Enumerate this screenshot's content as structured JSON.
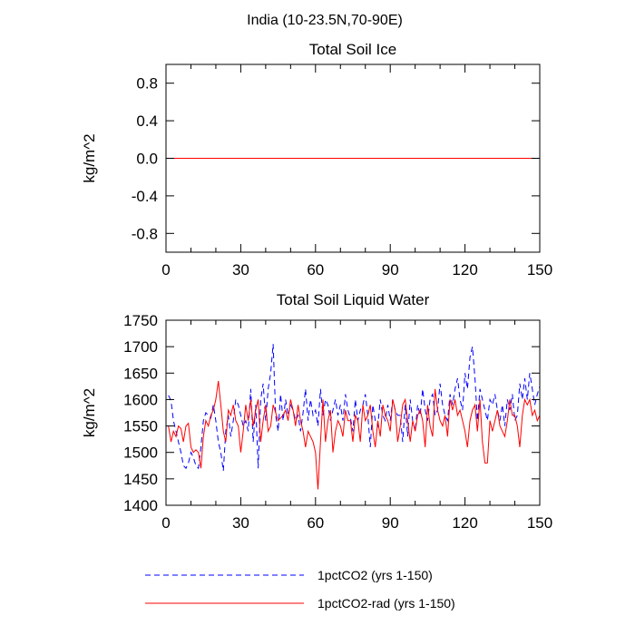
{
  "figure_title": "India (10-23.5N,70-90E)",
  "colors": {
    "series_1": "#0000ff",
    "series_2": "#ff0000",
    "axes": "#000000"
  },
  "chart_data": [
    {
      "type": "line",
      "title": "Total Soil Ice",
      "xlabel": "",
      "ylabel": "kg/m^2",
      "xlim": [
        0,
        150
      ],
      "ylim": [
        -1,
        1
      ],
      "xticks": [
        0,
        30,
        60,
        90,
        120,
        150
      ],
      "yticks": [
        -0.8,
        -0.4,
        0.0,
        0.4,
        0.8
      ],
      "ytick_labels": [
        "-0.8",
        "-0.4",
        "0.0",
        "0.4",
        "0.8"
      ],
      "grid": false,
      "series": [
        {
          "name": "1pctCO2 (yrs 1-150)",
          "style": "dashed",
          "color": "#0000ff",
          "x": [
            0,
            150
          ],
          "values": [
            0,
            0
          ]
        },
        {
          "name": "1pctCO2-rad (yrs 1-150)",
          "style": "solid",
          "color": "#ff0000",
          "x": [
            0,
            150
          ],
          "values": [
            0,
            0
          ]
        }
      ]
    },
    {
      "type": "line",
      "title": "Total Soil Liquid Water",
      "xlabel": "",
      "ylabel": "kg/m^2",
      "xlim": [
        0,
        150
      ],
      "ylim": [
        1400,
        1750
      ],
      "xticks": [
        0,
        30,
        60,
        90,
        120,
        150
      ],
      "yticks": [
        1400,
        1450,
        1500,
        1550,
        1600,
        1650,
        1700,
        1750
      ],
      "ytick_labels": [
        "1400",
        "1450",
        "1500",
        "1550",
        "1600",
        "1650",
        "1700",
        "1750"
      ],
      "grid": false,
      "series": [
        {
          "name": "1pctCO2 (yrs 1-150)",
          "style": "dashed",
          "color": "#0000ff",
          "x_start": 1,
          "values": [
            1608,
            1598,
            1560,
            1540,
            1520,
            1500,
            1475,
            1470,
            1480,
            1500,
            1490,
            1475,
            1470,
            1510,
            1560,
            1575,
            1570,
            1565,
            1590,
            1560,
            1520,
            1500,
            1465,
            1540,
            1570,
            1530,
            1560,
            1600,
            1590,
            1570,
            1550,
            1560,
            1540,
            1620,
            1520,
            1590,
            1470,
            1600,
            1630,
            1560,
            1620,
            1650,
            1705,
            1570,
            1540,
            1610,
            1560,
            1600,
            1570,
            1590,
            1580,
            1560,
            1570,
            1540,
            1575,
            1620,
            1560,
            1600,
            1570,
            1580,
            1550,
            1620,
            1570,
            1600,
            1590,
            1560,
            1580,
            1600,
            1570,
            1590,
            1560,
            1610,
            1580,
            1565,
            1540,
            1600,
            1560,
            1580,
            1590,
            1610,
            1570,
            1510,
            1590,
            1560,
            1550,
            1600,
            1570,
            1560,
            1590,
            1560,
            1600,
            1580,
            1570,
            1570,
            1520,
            1590,
            1530,
            1600,
            1560,
            1540,
            1590,
            1570,
            1620,
            1580,
            1560,
            1600,
            1610,
            1570,
            1580,
            1630,
            1590,
            1570,
            1560,
            1610,
            1590,
            1620,
            1640,
            1600,
            1580,
            1650,
            1620,
            1680,
            1700,
            1640,
            1560,
            1620,
            1600,
            1580,
            1560,
            1600,
            1590,
            1610,
            1580,
            1560,
            1590,
            1550,
            1600,
            1580,
            1610,
            1560,
            1570,
            1630,
            1600,
            1640,
            1600,
            1650,
            1620,
            1590,
            1610,
            1625
          ]
        },
        {
          "name": "1pctCO2-rad (yrs 1-150)",
          "style": "solid",
          "color": "#ff0000",
          "x_start": 1,
          "values": [
            1550,
            1520,
            1540,
            1530,
            1550,
            1545,
            1520,
            1550,
            1555,
            1510,
            1500,
            1505,
            1500,
            1470,
            1530,
            1560,
            1550,
            1570,
            1580,
            1600,
            1635,
            1590,
            1540,
            1520,
            1580,
            1570,
            1590,
            1560,
            1550,
            1500,
            1540,
            1590,
            1560,
            1600,
            1550,
            1580,
            1600,
            1520,
            1560,
            1590,
            1540,
            1550,
            1590,
            1575,
            1560,
            1565,
            1570,
            1580,
            1560,
            1600,
            1580,
            1550,
            1590,
            1560,
            1540,
            1510,
            1540,
            1530,
            1520,
            1500,
            1430,
            1520,
            1600,
            1520,
            1560,
            1580,
            1500,
            1540,
            1560,
            1550,
            1530,
            1580,
            1560,
            1560,
            1520,
            1570,
            1560,
            1520,
            1590,
            1560,
            1570,
            1590,
            1540,
            1510,
            1560,
            1530,
            1590,
            1570,
            1560,
            1540,
            1600,
            1580,
            1520,
            1550,
            1590,
            1600,
            1560,
            1520,
            1560,
            1540,
            1570,
            1580,
            1560,
            1510,
            1590,
            1550,
            1530,
            1620,
            1580,
            1560,
            1550,
            1570,
            1530,
            1600,
            1580,
            1600,
            1570,
            1580,
            1560,
            1540,
            1510,
            1560,
            1580,
            1590,
            1540,
            1600,
            1520,
            1480,
            1480,
            1560,
            1540,
            1560,
            1580,
            1550,
            1540,
            1530,
            1560,
            1600,
            1570,
            1570,
            1550,
            1510,
            1570,
            1600,
            1590,
            1600,
            1570,
            1580,
            1560,
            1570
          ]
        }
      ]
    }
  ]
}
